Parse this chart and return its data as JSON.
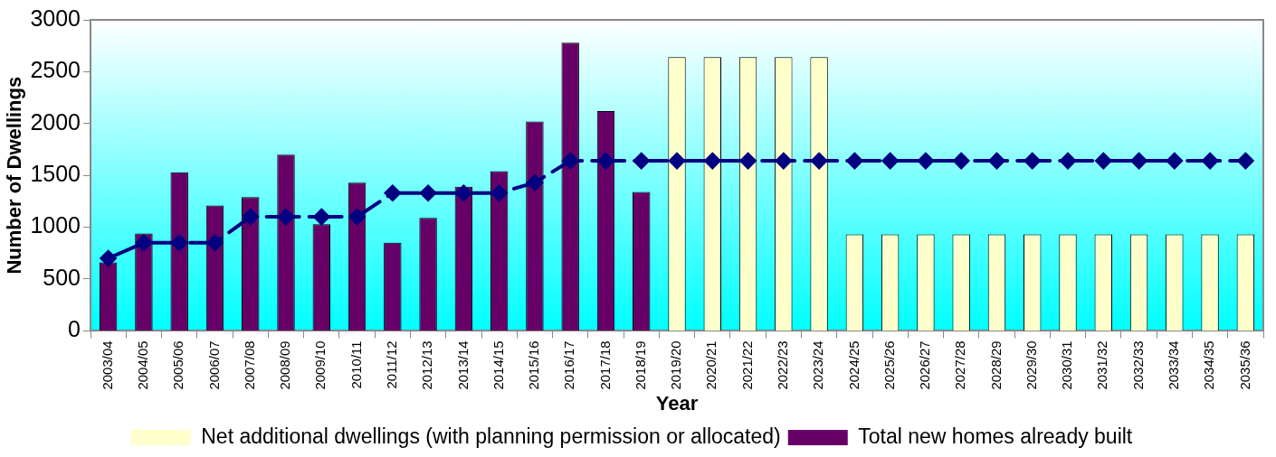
{
  "chart_data": {
    "type": "bar",
    "xlabel": "Year",
    "ylabel": "Number of Dwellings",
    "categories": [
      "2003/04",
      "2004/05",
      "2005/06",
      "2006/07",
      "2007/08",
      "2008/09",
      "2009/10",
      "2010/11",
      "2011/12",
      "2012/13",
      "2013/14",
      "2014/15",
      "2015/16",
      "2016/17",
      "2017/18",
      "2018/19",
      "2019/20",
      "2020/21",
      "2021/22",
      "2022/23",
      "2023/24",
      "2024/25",
      "2025/26",
      "2026/27",
      "2027/28",
      "2028/29",
      "2029/30",
      "2030/31",
      "2031/32",
      "2032/33",
      "2033/34",
      "2034/35",
      "2035/36"
    ],
    "series": [
      {
        "name": "Total new homes already built",
        "color": "#660066",
        "values": [
          660,
          940,
          1530,
          1210,
          1290,
          1700,
          1030,
          1430,
          850,
          1090,
          1390,
          1540,
          2020,
          2780,
          2120,
          1340,
          null,
          null,
          null,
          null,
          null,
          null,
          null,
          null,
          null,
          null,
          null,
          null,
          null,
          null,
          null,
          null,
          null
        ]
      },
      {
        "name": "Net additional dwellings (with planning permission or allocated)",
        "color": "#ffffcc",
        "values": [
          null,
          null,
          null,
          null,
          null,
          null,
          null,
          null,
          null,
          null,
          null,
          null,
          null,
          null,
          null,
          null,
          2640,
          2640,
          2640,
          2640,
          2640,
          930,
          930,
          930,
          930,
          930,
          930,
          930,
          930,
          930,
          930,
          930,
          930
        ]
      },
      {
        "type": "line",
        "color": "#000080",
        "marker": "diamond",
        "line_style": "dashed",
        "values": [
          700,
          850,
          850,
          850,
          1100,
          1100,
          1100,
          1100,
          1330,
          1330,
          1330,
          1330,
          1430,
          1640,
          1640,
          1640,
          1640,
          1640,
          1640,
          1640,
          1640,
          1640,
          1640,
          1640,
          1640,
          1640,
          1640,
          1640,
          1640,
          1640,
          1640,
          1640,
          1640
        ]
      }
    ],
    "ylim": [
      0,
      3000
    ],
    "yticks": [
      0,
      500,
      1000,
      1500,
      2000,
      2500,
      3000
    ],
    "grid": false,
    "legend": "bottom"
  }
}
